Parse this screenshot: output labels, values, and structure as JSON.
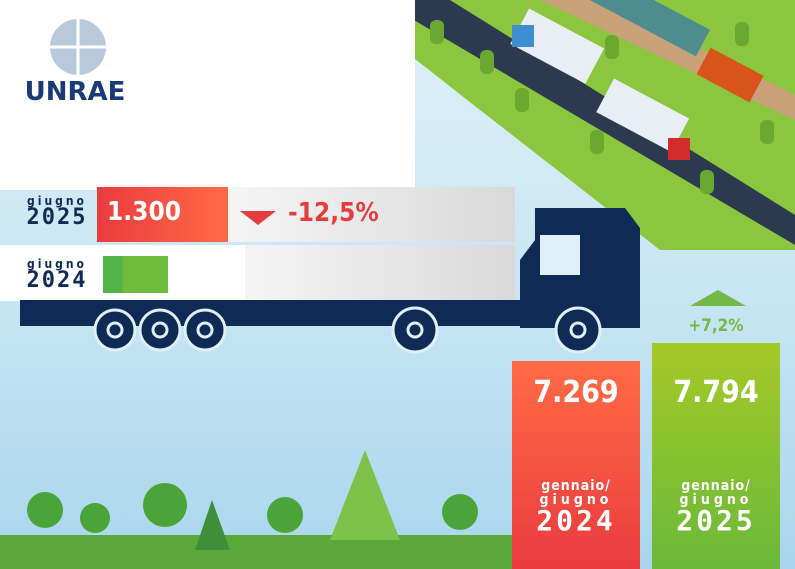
{
  "logo": {
    "text": "UNRAE"
  },
  "monthly": {
    "current": {
      "month": "giugno",
      "year": "2025",
      "value": "1.300",
      "change": "-12,5%",
      "trend": "down"
    },
    "previous": {
      "month": "giugno",
      "year": "2024"
    }
  },
  "ytd": {
    "previous": {
      "value": "7.269",
      "period_line1": "gennaio/",
      "period_line2": "giugno",
      "year": "2024"
    },
    "current": {
      "value": "7.794",
      "period_line1": "gennaio/",
      "period_line2": "giugno",
      "year": "2025",
      "change": "+7,2%",
      "trend": "up"
    }
  },
  "colors": {
    "red": "#ea3b3f",
    "orange": "#ff6b45",
    "green": "#6ab93a",
    "lime": "#a4c927",
    "navy": "#0f2a55"
  }
}
